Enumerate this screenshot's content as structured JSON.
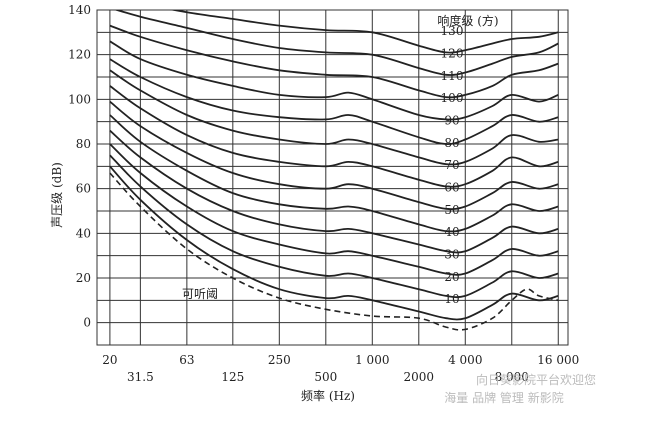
{
  "chart_data": {
    "type": "line",
    "title": "",
    "xlabel": "频率 (Hz)",
    "ylabel": "声压级 (dB)",
    "xscale": "log",
    "xlim": [
      20,
      16000
    ],
    "ylim": [
      0,
      140
    ],
    "grid": true,
    "x_ticks": [
      {
        "value": 20,
        "label": "20"
      },
      {
        "value": 31.5,
        "label": "31.5"
      },
      {
        "value": 63,
        "label": "63"
      },
      {
        "value": 125,
        "label": "125"
      },
      {
        "value": 250,
        "label": "250"
      },
      {
        "value": 500,
        "label": "500"
      },
      {
        "value": 1000,
        "label": "1 000"
      },
      {
        "value": 2000,
        "label": "2000"
      },
      {
        "value": 4000,
        "label": "4 000"
      },
      {
        "value": 8000,
        "label": "8 000"
      },
      {
        "value": 16000,
        "label": "16 000"
      }
    ],
    "y_ticks": [
      0,
      20,
      40,
      60,
      80,
      100,
      120,
      140
    ],
    "legend_title": "响度级 (方)",
    "series": [
      {
        "name": "130",
        "values": [
          [
            20,
            148
          ],
          [
            25,
            145
          ],
          [
            31.5,
            143
          ],
          [
            63,
            139
          ],
          [
            125,
            136
          ],
          [
            250,
            133
          ],
          [
            500,
            131
          ],
          [
            1000,
            130
          ],
          [
            2000,
            124
          ],
          [
            3000,
            121
          ],
          [
            4000,
            122
          ],
          [
            6000,
            125
          ],
          [
            8000,
            127
          ],
          [
            12000,
            128
          ],
          [
            16000,
            130
          ]
        ]
      },
      {
        "name": "120",
        "values": [
          [
            20,
            141
          ],
          [
            31.5,
            137
          ],
          [
            63,
            132
          ],
          [
            125,
            127
          ],
          [
            250,
            123
          ],
          [
            500,
            121
          ],
          [
            1000,
            120
          ],
          [
            2000,
            114
          ],
          [
            3000,
            111
          ],
          [
            4000,
            112
          ],
          [
            6000,
            116
          ],
          [
            8000,
            119
          ],
          [
            12000,
            121
          ],
          [
            16000,
            125
          ]
        ]
      },
      {
        "name": "110",
        "values": [
          [
            20,
            133
          ],
          [
            31.5,
            128
          ],
          [
            63,
            122
          ],
          [
            125,
            117
          ],
          [
            250,
            113
          ],
          [
            500,
            111
          ],
          [
            1000,
            110
          ],
          [
            2000,
            104
          ],
          [
            3000,
            101
          ],
          [
            4000,
            102
          ],
          [
            6000,
            106
          ],
          [
            8000,
            111
          ],
          [
            12000,
            113
          ],
          [
            16000,
            116
          ]
        ]
      },
      {
        "name": "100",
        "values": [
          [
            20,
            126
          ],
          [
            31.5,
            118
          ],
          [
            63,
            111
          ],
          [
            125,
            106
          ],
          [
            250,
            102
          ],
          [
            500,
            101
          ],
          [
            700,
            103
          ],
          [
            1000,
            100
          ],
          [
            2000,
            93
          ],
          [
            3000,
            91
          ],
          [
            4000,
            92
          ],
          [
            6000,
            97
          ],
          [
            8000,
            102
          ],
          [
            12000,
            99
          ],
          [
            16000,
            102
          ]
        ]
      },
      {
        "name": "90",
        "values": [
          [
            20,
            118
          ],
          [
            31.5,
            110
          ],
          [
            63,
            101
          ],
          [
            125,
            95
          ],
          [
            250,
            92
          ],
          [
            500,
            91
          ],
          [
            700,
            93
          ],
          [
            1000,
            90
          ],
          [
            2000,
            83
          ],
          [
            3000,
            80
          ],
          [
            4000,
            82
          ],
          [
            6000,
            88
          ],
          [
            8000,
            93
          ],
          [
            12000,
            90
          ],
          [
            16000,
            92
          ]
        ]
      },
      {
        "name": "80",
        "values": [
          [
            20,
            113
          ],
          [
            31.5,
            104
          ],
          [
            63,
            93
          ],
          [
            125,
            86
          ],
          [
            250,
            82
          ],
          [
            500,
            80
          ],
          [
            700,
            82
          ],
          [
            1000,
            80
          ],
          [
            2000,
            74
          ],
          [
            3000,
            71
          ],
          [
            4000,
            72
          ],
          [
            6000,
            78
          ],
          [
            8000,
            84
          ],
          [
            12000,
            81
          ],
          [
            16000,
            82
          ]
        ]
      },
      {
        "name": "70",
        "values": [
          [
            20,
            106
          ],
          [
            31.5,
            96
          ],
          [
            63,
            84
          ],
          [
            125,
            76
          ],
          [
            250,
            72
          ],
          [
            500,
            70
          ],
          [
            700,
            72
          ],
          [
            1000,
            70
          ],
          [
            2000,
            64
          ],
          [
            3000,
            61
          ],
          [
            4000,
            62
          ],
          [
            6000,
            68
          ],
          [
            8000,
            74
          ],
          [
            12000,
            70
          ],
          [
            16000,
            72
          ]
        ]
      },
      {
        "name": "60",
        "values": [
          [
            20,
            99
          ],
          [
            31.5,
            88
          ],
          [
            63,
            76
          ],
          [
            125,
            67
          ],
          [
            250,
            62
          ],
          [
            500,
            60
          ],
          [
            700,
            62
          ],
          [
            1000,
            60
          ],
          [
            2000,
            54
          ],
          [
            3000,
            51
          ],
          [
            4000,
            52
          ],
          [
            6000,
            58
          ],
          [
            8000,
            63
          ],
          [
            12000,
            60
          ],
          [
            16000,
            62
          ]
        ]
      },
      {
        "name": "50",
        "values": [
          [
            20,
            93
          ],
          [
            31.5,
            81
          ],
          [
            63,
            68
          ],
          [
            125,
            58
          ],
          [
            250,
            53
          ],
          [
            500,
            51
          ],
          [
            700,
            52
          ],
          [
            1000,
            50
          ],
          [
            2000,
            44
          ],
          [
            3000,
            41
          ],
          [
            4000,
            42
          ],
          [
            6000,
            48
          ],
          [
            8000,
            53
          ],
          [
            12000,
            50
          ],
          [
            16000,
            52
          ]
        ]
      },
      {
        "name": "40",
        "values": [
          [
            20,
            86
          ],
          [
            31.5,
            74
          ],
          [
            63,
            60
          ],
          [
            125,
            50
          ],
          [
            250,
            44
          ],
          [
            500,
            41
          ],
          [
            700,
            42
          ],
          [
            1000,
            40
          ],
          [
            2000,
            35
          ],
          [
            3000,
            32
          ],
          [
            4000,
            32
          ],
          [
            6000,
            38
          ],
          [
            8000,
            43
          ],
          [
            12000,
            40
          ],
          [
            16000,
            42
          ]
        ]
      },
      {
        "name": "30",
        "values": [
          [
            20,
            80
          ],
          [
            31.5,
            67
          ],
          [
            63,
            52
          ],
          [
            125,
            41
          ],
          [
            250,
            35
          ],
          [
            500,
            31
          ],
          [
            700,
            32
          ],
          [
            1000,
            30
          ],
          [
            2000,
            25
          ],
          [
            3000,
            22
          ],
          [
            4000,
            22
          ],
          [
            6000,
            28
          ],
          [
            8000,
            33
          ],
          [
            12000,
            30
          ],
          [
            16000,
            32
          ]
        ]
      },
      {
        "name": "20",
        "values": [
          [
            20,
            75
          ],
          [
            31.5,
            61
          ],
          [
            63,
            44
          ],
          [
            125,
            32
          ],
          [
            250,
            25
          ],
          [
            500,
            21
          ],
          [
            700,
            22
          ],
          [
            1000,
            20
          ],
          [
            2000,
            15
          ],
          [
            3000,
            12
          ],
          [
            4000,
            12
          ],
          [
            6000,
            18
          ],
          [
            8000,
            23
          ],
          [
            12000,
            20
          ],
          [
            16000,
            22
          ]
        ]
      },
      {
        "name": "10",
        "values": [
          [
            20,
            70
          ],
          [
            31.5,
            55
          ],
          [
            63,
            37
          ],
          [
            125,
            24
          ],
          [
            250,
            15
          ],
          [
            500,
            11
          ],
          [
            700,
            12
          ],
          [
            1000,
            10
          ],
          [
            2000,
            5
          ],
          [
            3000,
            2
          ],
          [
            4000,
            2
          ],
          [
            6000,
            8
          ],
          [
            8000,
            13
          ],
          [
            12000,
            10
          ],
          [
            16000,
            12
          ]
        ]
      }
    ],
    "threshold": {
      "name": "可听阈",
      "values": [
        [
          20,
          67
        ],
        [
          31.5,
          52
        ],
        [
          63,
          33
        ],
        [
          125,
          20
        ],
        [
          250,
          11
        ],
        [
          500,
          6
        ],
        [
          1000,
          3
        ],
        [
          2000,
          2
        ],
        [
          3000,
          -2
        ],
        [
          4000,
          -3
        ],
        [
          6000,
          2
        ],
        [
          8000,
          10
        ],
        [
          10000,
          15
        ],
        [
          12000,
          12
        ],
        [
          16000,
          10
        ]
      ]
    }
  },
  "watermark": {
    "line1": "向日葵影院平台欢迎您",
    "line2": "海量 品牌 管理 新影院"
  }
}
